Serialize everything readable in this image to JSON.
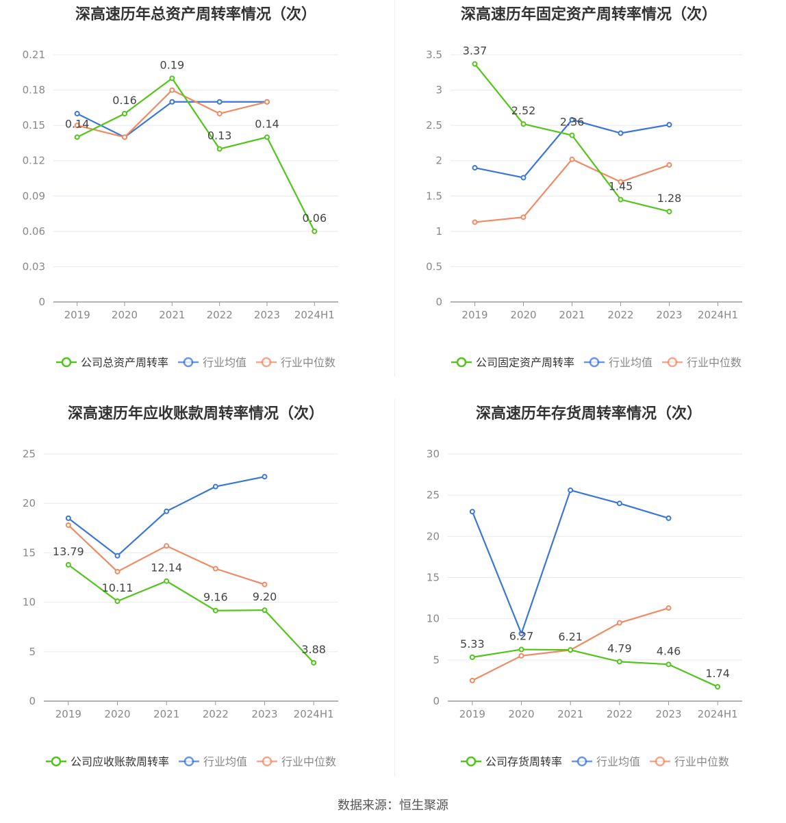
{
  "footer": {
    "source": "数据来源：恒生聚源"
  },
  "colors": {
    "company": "#52c41a",
    "average": "#3a75d9",
    "median": "#f08a63",
    "axis": "#888888",
    "grid": "#e8e8f0",
    "text": "#555555",
    "title": "#333333"
  },
  "chart_data": [
    {
      "type": "line",
      "title": "深高速历年总资产周转率情况（次）",
      "categories": [
        "2019",
        "2020",
        "2021",
        "2022",
        "2023",
        "2024H1"
      ],
      "ylim": [
        0,
        0.21
      ],
      "yticks": [
        "0",
        "0.03",
        "0.06",
        "0.09",
        "0.12",
        "0.15",
        "0.18",
        "0.21"
      ],
      "grid": true,
      "legend": "bottom",
      "series": [
        {
          "name": "公司总资产周转率",
          "role": "company",
          "values": [
            0.14,
            0.16,
            0.19,
            0.13,
            0.14,
            0.06
          ],
          "labels": [
            "0.14",
            "0.16",
            "0.19",
            "0.13",
            "0.14",
            "0.06"
          ]
        },
        {
          "name": "行业均值",
          "role": "average",
          "values": [
            0.16,
            0.14,
            0.17,
            0.17,
            0.17,
            null
          ]
        },
        {
          "name": "行业中位数",
          "role": "median",
          "values": [
            0.15,
            0.14,
            0.18,
            0.16,
            0.17,
            null
          ]
        }
      ]
    },
    {
      "type": "line",
      "title": "深高速历年固定资产周转率情况（次）",
      "categories": [
        "2019",
        "2020",
        "2021",
        "2022",
        "2023",
        "2024H1"
      ],
      "ylim": [
        0,
        3.5
      ],
      "yticks": [
        "0",
        "0.5",
        "1",
        "1.5",
        "2",
        "2.5",
        "3",
        "3.5"
      ],
      "grid": true,
      "legend": "bottom",
      "series": [
        {
          "name": "公司固定资产周转率",
          "role": "company",
          "values": [
            3.37,
            2.52,
            2.36,
            1.45,
            1.28,
            null
          ],
          "labels": [
            "3.37",
            "2.52",
            "2.36",
            "1.45",
            "1.28",
            ""
          ]
        },
        {
          "name": "行业均值",
          "role": "average",
          "values": [
            1.9,
            1.76,
            2.58,
            2.39,
            2.51,
            null
          ]
        },
        {
          "name": "行业中位数",
          "role": "median",
          "values": [
            1.13,
            1.2,
            2.02,
            1.7,
            1.94,
            null
          ]
        }
      ]
    },
    {
      "type": "line",
      "title": "深高速历年应收账款周转率情况（次）",
      "categories": [
        "2019",
        "2020",
        "2021",
        "2022",
        "2023",
        "2024H1"
      ],
      "ylim": [
        0,
        25
      ],
      "yticks": [
        "0",
        "5",
        "10",
        "15",
        "20",
        "25"
      ],
      "grid": true,
      "legend": "bottom",
      "series": [
        {
          "name": "公司应收账款周转率",
          "role": "company",
          "values": [
            13.79,
            10.11,
            12.14,
            9.16,
            9.2,
            3.88
          ],
          "labels": [
            "13.79",
            "10.11",
            "12.14",
            "9.16",
            "9.20",
            "3.88"
          ]
        },
        {
          "name": "行业均值",
          "role": "average",
          "values": [
            18.5,
            14.7,
            19.2,
            21.7,
            22.7,
            null
          ]
        },
        {
          "name": "行业中位数",
          "role": "median",
          "values": [
            17.8,
            13.1,
            15.7,
            13.4,
            11.8,
            null
          ]
        }
      ]
    },
    {
      "type": "line",
      "title": "深高速历年存货周转率情况（次）",
      "categories": [
        "2019",
        "2020",
        "2021",
        "2022",
        "2023",
        "2024H1"
      ],
      "ylim": [
        0,
        30
      ],
      "yticks": [
        "0",
        "5",
        "10",
        "15",
        "20",
        "25",
        "30"
      ],
      "grid": true,
      "legend": "bottom",
      "series": [
        {
          "name": "公司存货周转率",
          "role": "company",
          "values": [
            5.33,
            6.27,
            6.21,
            4.79,
            4.46,
            1.74
          ],
          "labels": [
            "5.33",
            "6.27",
            "6.21",
            "4.79",
            "4.46",
            "1.74"
          ]
        },
        {
          "name": "行业均值",
          "role": "average",
          "values": [
            23.0,
            8.2,
            25.6,
            24.0,
            22.2,
            null
          ]
        },
        {
          "name": "行业中位数",
          "role": "median",
          "values": [
            2.5,
            5.5,
            6.2,
            9.5,
            11.3,
            null
          ]
        }
      ]
    }
  ]
}
